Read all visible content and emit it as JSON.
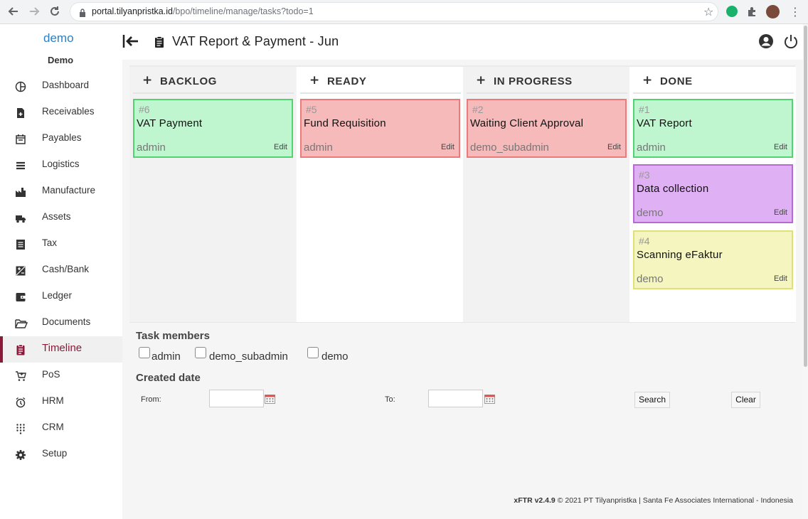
{
  "browser": {
    "url_host": "portal.tilyanpristka.id",
    "url_path": "/bpo/timeline/manage/tasks?todo=1"
  },
  "sidebar": {
    "brand": "demo",
    "user": "Demo",
    "items": [
      {
        "label": "Dashboard",
        "icon": "pie-chart-icon"
      },
      {
        "label": "Receivables",
        "icon": "file-plus-icon"
      },
      {
        "label": "Payables",
        "icon": "calendar-icon"
      },
      {
        "label": "Logistics",
        "icon": "list-icon"
      },
      {
        "label": "Manufacture",
        "icon": "factory-icon"
      },
      {
        "label": "Assets",
        "icon": "truck-icon"
      },
      {
        "label": "Tax",
        "icon": "receipt-icon"
      },
      {
        "label": "Cash/Bank",
        "icon": "exposure-icon"
      },
      {
        "label": "Ledger",
        "icon": "wallet-icon"
      },
      {
        "label": "Documents",
        "icon": "folder-open-icon"
      },
      {
        "label": "Timeline",
        "icon": "clipboard-icon"
      },
      {
        "label": "PoS",
        "icon": "cart-icon"
      },
      {
        "label": "HRM",
        "icon": "alarm-icon"
      },
      {
        "label": "CRM",
        "icon": "dialpad-icon"
      },
      {
        "label": "Setup",
        "icon": "gear-icon"
      }
    ]
  },
  "header": {
    "title": "VAT Report & Payment - Jun"
  },
  "columns": [
    {
      "title": "BACKLOG",
      "cards": [
        {
          "num": "#6",
          "title": "VAT Payment",
          "owner": "admin",
          "edit": "Edit",
          "color": "#bff5cf"
        }
      ]
    },
    {
      "title": "READY",
      "cards": [
        {
          "num": "#5",
          "title": "Fund Requisition",
          "owner": "admin",
          "edit": "Edit",
          "color": "#f6baba"
        }
      ]
    },
    {
      "title": "IN PROGRESS",
      "cards": [
        {
          "num": "#2",
          "title": "Waiting Client Approval",
          "owner": "demo_subadmin",
          "edit": "Edit",
          "color": "#f6baba"
        }
      ]
    },
    {
      "title": "DONE",
      "cards": [
        {
          "num": "#1",
          "title": "VAT Report",
          "owner": "admin",
          "edit": "Edit",
          "color": "#bff5cf"
        },
        {
          "num": "#3",
          "title": "Data collection",
          "owner": "demo",
          "edit": "Edit",
          "color": "#dfb0f3"
        },
        {
          "num": "#4",
          "title": "Scanning eFaktur",
          "owner": "demo",
          "edit": "Edit",
          "color": "#f5f5c0"
        }
      ]
    }
  ],
  "filters": {
    "members_label": "Task members",
    "members": [
      "admin",
      "demo_subadmin",
      "demo"
    ],
    "created_label": "Created date",
    "from_label": "From:",
    "to_label": "To:",
    "from_value": "",
    "to_value": "",
    "search_label": "Search",
    "clear_label": "Clear"
  },
  "footer": {
    "version": "xFTR v2.4.9",
    "copyright": "© 2021 PT Tilyanpristka | Santa Fe Associates International - Indonesia"
  }
}
